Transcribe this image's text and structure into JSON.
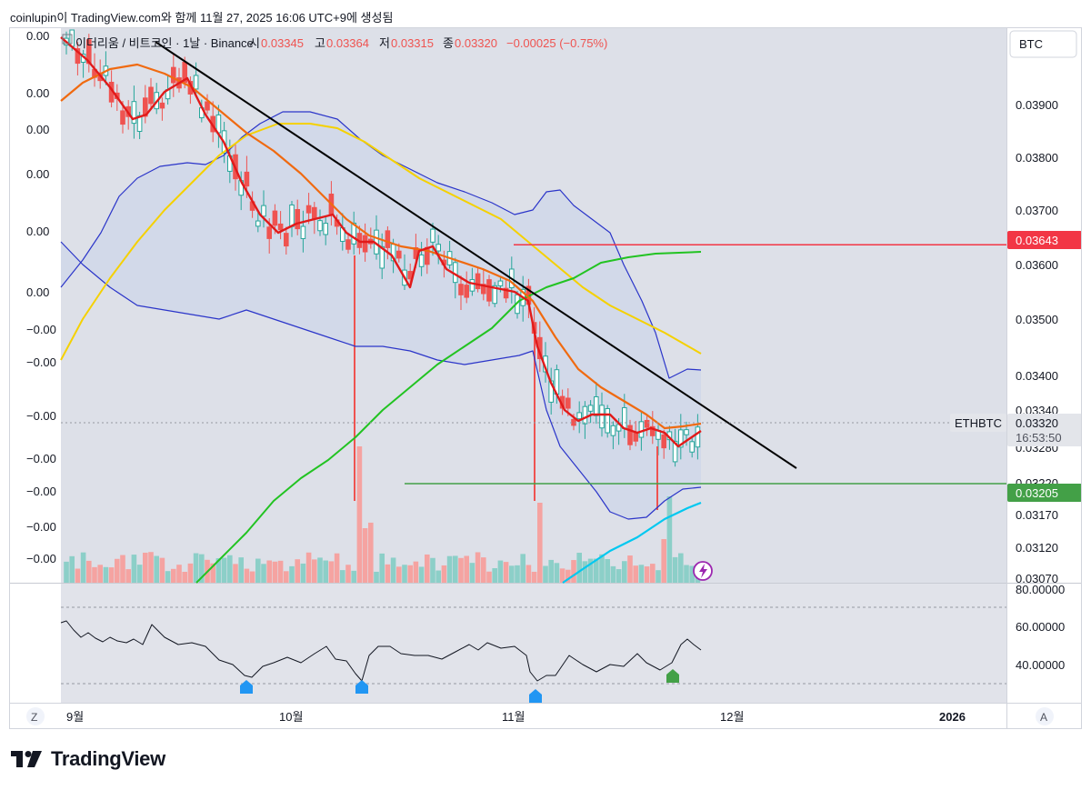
{
  "header": {
    "caption": "coinlupin이 TradingView.com와 함께 11월 27, 2025 16:06 UTC+9에 생성됨"
  },
  "legend": {
    "symbol": "이더리움 / 비트코인 · 1날 · Binance",
    "open_label": "시",
    "open": "0.03345",
    "high_label": "고",
    "high": "0.03364",
    "low_label": "저",
    "low": "0.03315",
    "close_label": "종",
    "close": "0.03320",
    "change": "−0.00025 (−0.75%)"
  },
  "currency_button": "BTC",
  "left_axis_labels": [
    "0.00",
    "0.00",
    "0.00",
    "0.00",
    "0.00",
    "0.00",
    "−0.00",
    "−0.00",
    "−0.00",
    "−0.00",
    "−0.00",
    "−0.00",
    "−0.00"
  ],
  "price_tag": {
    "symbol": "ETHBTC",
    "price": "0.03320",
    "countdown": "16:53:50"
  },
  "level_labels": {
    "red": "0.03643",
    "green": "0.03205"
  },
  "rsi_axis": [
    "80.00000",
    "60.00000",
    "40.00000"
  ],
  "bottom_buttons": {
    "left": "Z",
    "right": "A"
  },
  "footer": {
    "brand": "TradingView"
  },
  "colors": {
    "up": "#26a69a",
    "down": "#ef5350",
    "volume_up": "#8ccfc8",
    "volume_down": "#f5a3a1",
    "red_line": "#e11a1a",
    "orange_line": "#f06a10",
    "yellow_line": "#f5d100",
    "green_line": "#22c322",
    "cyan_line": "#00c8f0",
    "bollinger": "#2b35c9",
    "trendline": "#000000",
    "level_red": "#f23645",
    "level_green": "#43a047"
  },
  "chart_data": {
    "type": "candlestick",
    "symbol": "ETHBTC",
    "timeframe": "1D",
    "exchange": "Binance",
    "x_axis_ticks": [
      "9월",
      "10월",
      "11월",
      "12월",
      "2026"
    ],
    "y_axis_ticks": [
      "0.03900",
      "0.03800",
      "0.03700",
      "0.03600",
      "0.03500",
      "0.03400",
      "0.03340",
      "0.03280",
      "0.03220",
      "0.03170",
      "0.03120",
      "0.03070"
    ],
    "y_range": [
      0.0307,
      0.0398
    ],
    "last": {
      "open": 0.03345,
      "high": 0.03364,
      "low": 0.03315,
      "close": 0.0332,
      "change": -0.00025,
      "change_pct": -0.75
    },
    "horizontal_levels": [
      {
        "value": 0.03643,
        "color": "#f23645"
      },
      {
        "value": 0.03205,
        "color": "#43a047"
      }
    ],
    "lower_indicator": {
      "type": "oscillator",
      "y_ticks": [
        80,
        60,
        40
      ],
      "bands": [
        70,
        30
      ],
      "range": [
        25,
        82
      ]
    }
  }
}
